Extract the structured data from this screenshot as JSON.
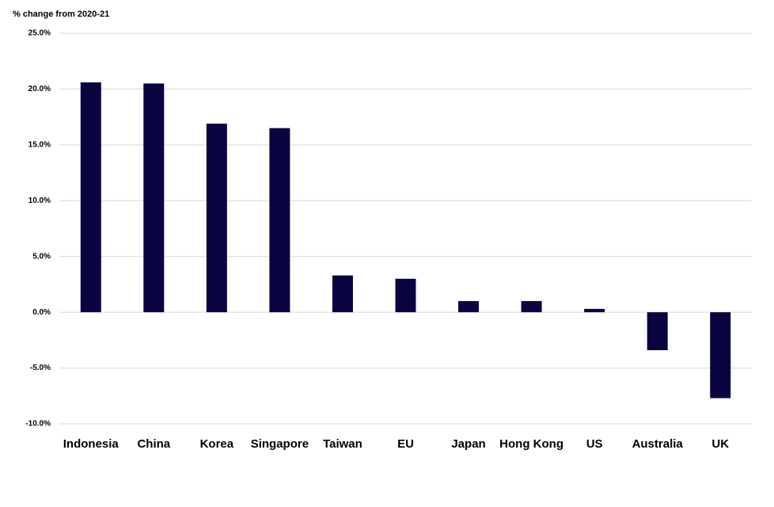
{
  "chart_data": {
    "type": "bar",
    "y_axis_label": "% change from 2020-21",
    "categories": [
      "Indonesia",
      "China",
      "Korea",
      "Singapore",
      "Taiwan",
      "EU",
      "Japan",
      "Hong Kong",
      "US",
      "Australia",
      "UK"
    ],
    "values": [
      20.6,
      20.5,
      16.9,
      16.5,
      3.3,
      3.0,
      1.0,
      1.0,
      0.3,
      -3.4,
      -7.7
    ],
    "color": "#0a0540",
    "ylim": [
      -10,
      25
    ],
    "yticks": [
      {
        "value": -10,
        "label": "-10.0%"
      },
      {
        "value": -5,
        "label": "-5.0%"
      },
      {
        "value": 0,
        "label": "0.0%"
      },
      {
        "value": 5,
        "label": "5.0%"
      },
      {
        "value": 10,
        "label": "10.0%"
      },
      {
        "value": 15,
        "label": "15.0%"
      },
      {
        "value": 20,
        "label": "20.0%"
      },
      {
        "value": 25,
        "label": "25.0%"
      }
    ],
    "grid": true
  }
}
